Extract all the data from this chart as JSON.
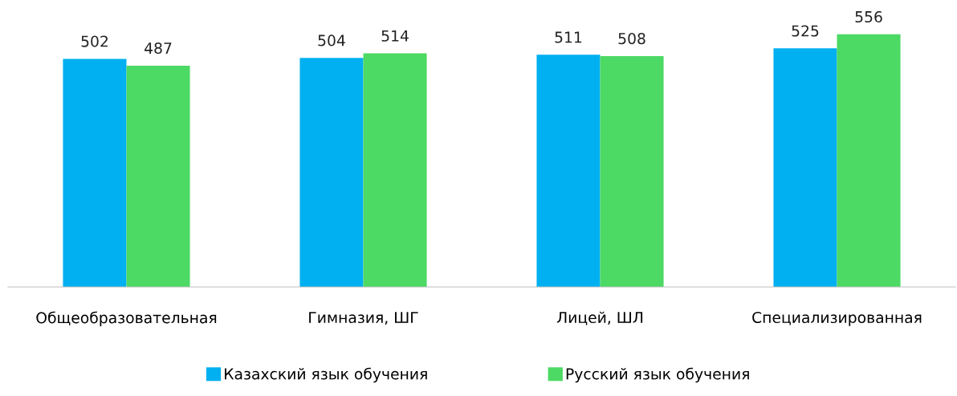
{
  "chart_data": {
    "type": "bar",
    "categories": [
      "Общеобразовательная",
      "Гимназия, ШГ",
      "Лицей, ШЛ",
      "Специализированная"
    ],
    "series": [
      {
        "name": "Казахский язык обучения",
        "color": "#00b0f0",
        "values": [
          502,
          504,
          511,
          525
        ]
      },
      {
        "name": "Русский язык обучения",
        "color": "#4cd964",
        "values": [
          487,
          514,
          508,
          556
        ]
      }
    ],
    "tick_labels": "x",
    "data_labels": true,
    "legend": "bottom",
    "grid": false
  }
}
